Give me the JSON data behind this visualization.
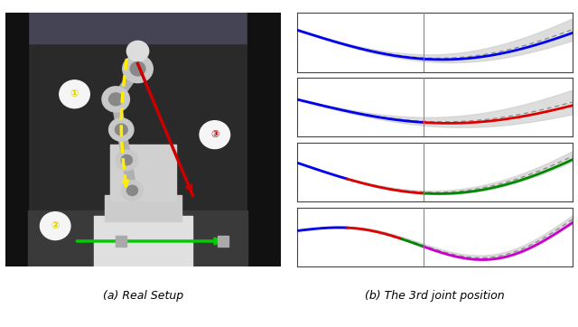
{
  "title_a": "(a) Real Setup",
  "title_b": "(b) The 3rd joint position",
  "subplot_colors": [
    "#0000ee",
    "#dd0000",
    "#008800",
    "#cc00cc"
  ],
  "n_subplots": 4,
  "vline_x": 0.46,
  "background_color": "#ffffff",
  "gray_band_color": "#cccccc",
  "gray_band_alpha": 0.65,
  "dashed_color": "#888888",
  "blue_color": "#0000ee",
  "red_color": "#dd0000",
  "green_color": "#008800",
  "panel_bg": "#ffffff",
  "subplot1_end_high": true,
  "subplot2_end_mid": true,
  "subplot3_end_high": true,
  "subplot4_s_curve": true
}
